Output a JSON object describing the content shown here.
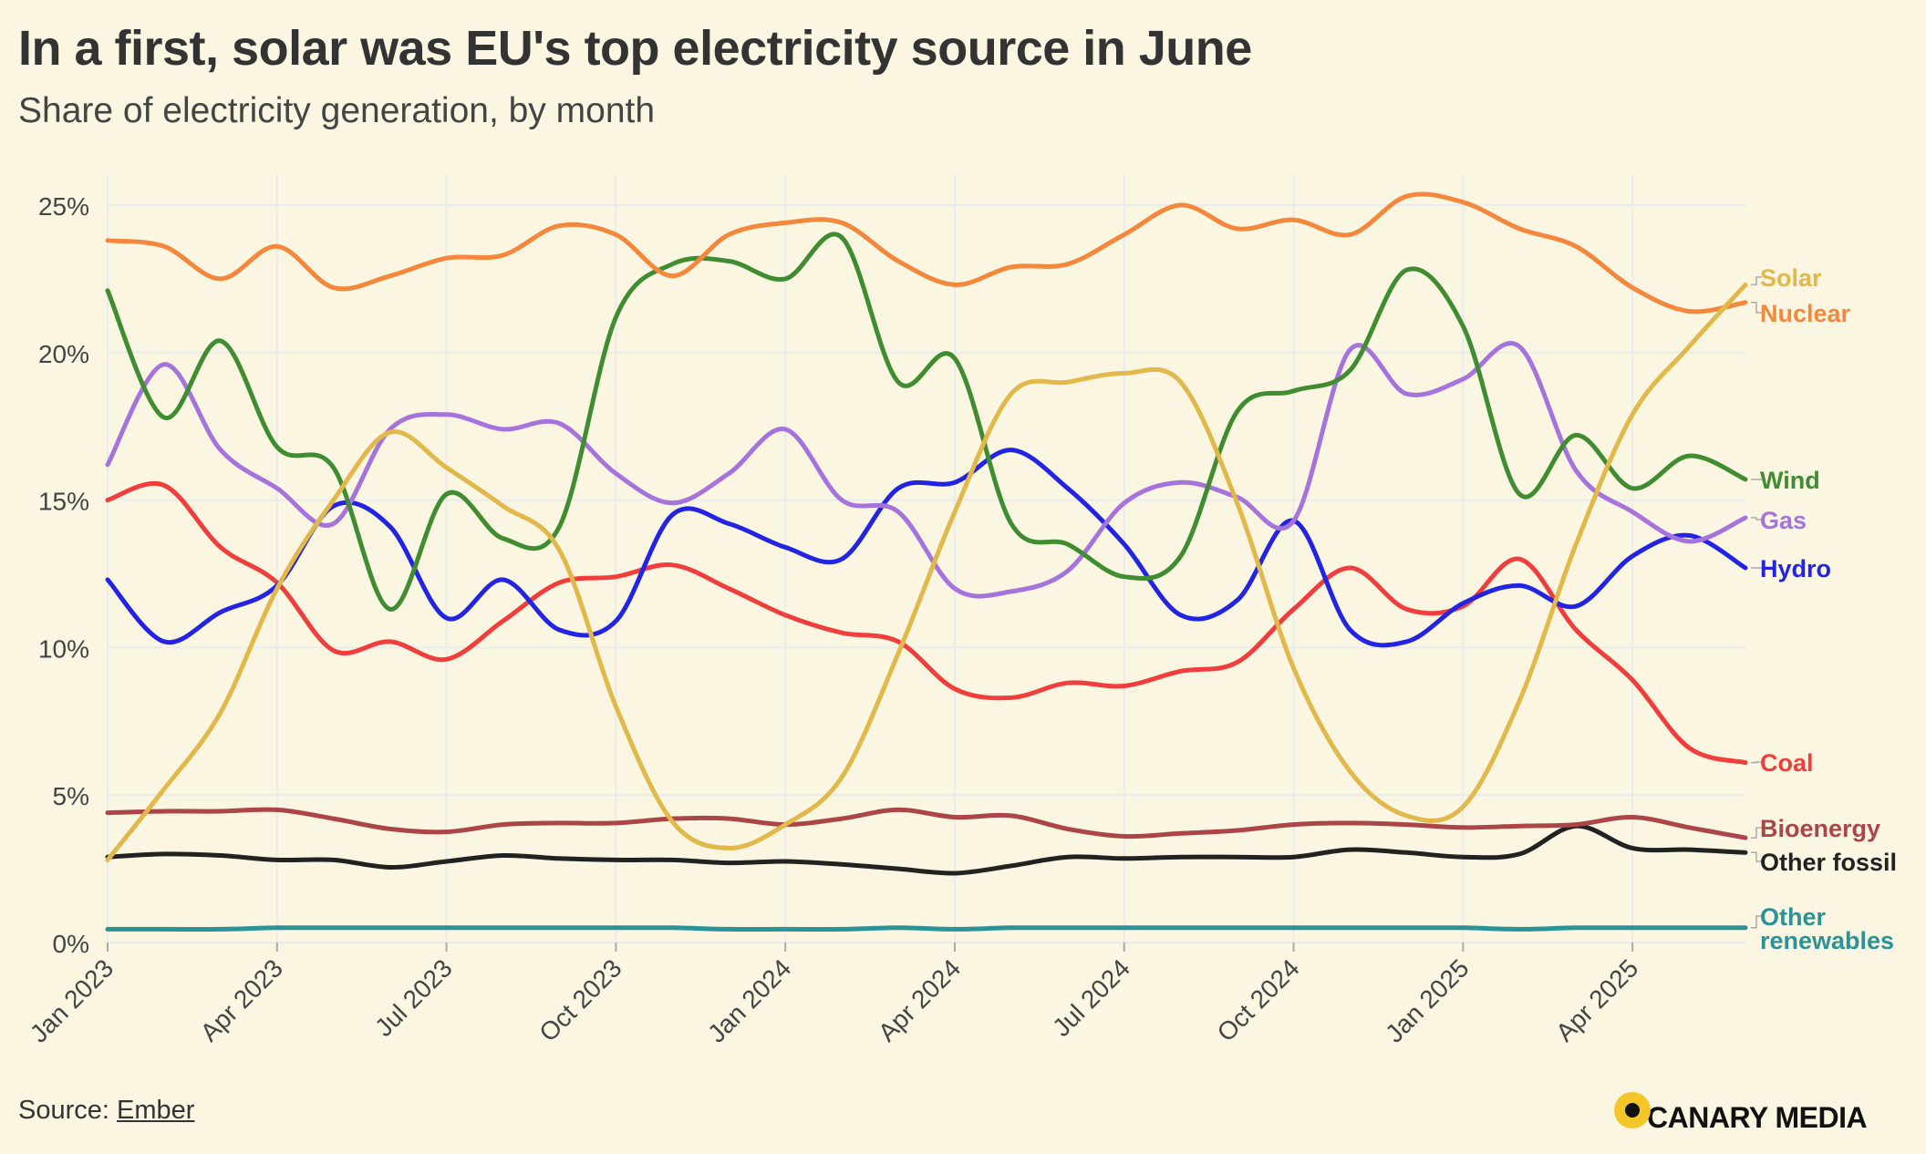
{
  "header": {
    "title": "In a first, solar was EU's top electricity source in June",
    "subtitle": "Share of electricity generation, by month"
  },
  "footer": {
    "source_label": "Source: ",
    "source_link": "Ember",
    "brand": "CANARY MEDIA"
  },
  "chart_data": {
    "type": "line",
    "title": "In a first, solar was EU's top electricity source in June",
    "subtitle": "Share of electricity generation, by month",
    "xlabel": "",
    "ylabel": "",
    "ylim": [
      0,
      26
    ],
    "yticks": [
      0,
      5,
      10,
      15,
      20,
      25
    ],
    "ytick_labels": [
      "0%",
      "5%",
      "10%",
      "15%",
      "20%",
      "25%"
    ],
    "x": [
      "2023-01",
      "2023-02",
      "2023-03",
      "2023-04",
      "2023-05",
      "2023-06",
      "2023-07",
      "2023-08",
      "2023-09",
      "2023-10",
      "2023-11",
      "2023-12",
      "2024-01",
      "2024-02",
      "2024-03",
      "2024-04",
      "2024-05",
      "2024-06",
      "2024-07",
      "2024-08",
      "2024-09",
      "2024-10",
      "2024-11",
      "2024-12",
      "2025-01",
      "2025-02",
      "2025-03",
      "2025-04",
      "2025-05",
      "2025-06"
    ],
    "xticks": [
      0,
      3,
      6,
      9,
      12,
      15,
      18,
      21,
      24,
      27
    ],
    "xtick_labels": [
      "Jan 2023",
      "Apr 2023",
      "Jul 2023",
      "Oct 2023",
      "Jan 2024",
      "Apr 2024",
      "Jul 2024",
      "Oct 2024",
      "Jan 2025",
      "Apr 2025"
    ],
    "grid": true,
    "series": [
      {
        "name": "Solar",
        "label": "Solar",
        "color": "#e2b84b",
        "values": [
          2.8,
          5.2,
          7.8,
          12.0,
          15.0,
          17.3,
          16.1,
          14.8,
          13.3,
          8.0,
          4.1,
          3.2,
          4.0,
          5.6,
          9.8,
          14.6,
          18.6,
          19.0,
          19.3,
          19.0,
          14.9,
          9.3,
          5.8,
          4.3,
          4.6,
          8.2,
          13.5,
          17.9,
          20.2,
          22.3
        ]
      },
      {
        "name": "Nuclear",
        "label": "Nuclear",
        "color": "#f5873d",
        "values": [
          23.8,
          23.6,
          22.5,
          23.6,
          22.2,
          22.6,
          23.2,
          23.3,
          24.3,
          24.0,
          22.6,
          24.0,
          24.4,
          24.4,
          23.1,
          22.3,
          22.9,
          23.0,
          24.0,
          25.0,
          24.2,
          24.5,
          24.0,
          25.3,
          25.1,
          24.2,
          23.6,
          22.2,
          21.4,
          21.7
        ]
      },
      {
        "name": "Wind",
        "label": "Wind",
        "color": "#3f8c31",
        "values": [
          22.1,
          17.8,
          20.4,
          16.8,
          16.1,
          11.3,
          15.2,
          13.7,
          14.1,
          21.2,
          23.0,
          23.1,
          22.5,
          23.9,
          19.0,
          19.8,
          14.2,
          13.5,
          12.4,
          13.1,
          18.0,
          18.7,
          19.4,
          22.8,
          20.9,
          15.2,
          17.2,
          15.4,
          16.5,
          15.7
        ]
      },
      {
        "name": "Gas",
        "label": "Gas",
        "color": "#a673dd",
        "values": [
          16.2,
          19.6,
          16.7,
          15.4,
          14.2,
          17.4,
          17.9,
          17.4,
          17.6,
          15.9,
          14.9,
          15.9,
          17.4,
          15.0,
          14.6,
          12.0,
          11.9,
          12.6,
          14.9,
          15.6,
          15.1,
          14.3,
          20.1,
          18.6,
          19.1,
          20.2,
          16.0,
          14.6,
          13.6,
          14.4
        ]
      },
      {
        "name": "Hydro",
        "label": "Hydro",
        "color": "#2324e3",
        "values": [
          12.3,
          10.2,
          11.2,
          12.1,
          14.8,
          14.1,
          11.0,
          12.3,
          10.6,
          10.9,
          14.5,
          14.2,
          13.4,
          13.0,
          15.4,
          15.6,
          16.7,
          15.4,
          13.5,
          11.1,
          11.6,
          14.3,
          10.6,
          10.2,
          11.5,
          12.1,
          11.4,
          13.1,
          13.8,
          12.7
        ]
      },
      {
        "name": "Coal",
        "label": "Coal",
        "color": "#f23d3d",
        "values": [
          15.0,
          15.5,
          13.4,
          12.2,
          9.9,
          10.2,
          9.6,
          10.9,
          12.2,
          12.4,
          12.8,
          12.0,
          11.1,
          10.5,
          10.2,
          8.6,
          8.3,
          8.8,
          8.7,
          9.2,
          9.5,
          11.3,
          12.7,
          11.3,
          11.4,
          13.0,
          10.6,
          8.9,
          6.6,
          6.1
        ]
      },
      {
        "name": "Bioenergy",
        "label": "Bioenergy",
        "color": "#ac4548",
        "values": [
          4.4,
          4.45,
          4.45,
          4.5,
          4.2,
          3.85,
          3.75,
          4.0,
          4.05,
          4.05,
          4.2,
          4.2,
          4.0,
          4.2,
          4.5,
          4.25,
          4.3,
          3.85,
          3.6,
          3.7,
          3.8,
          4.0,
          4.05,
          4.0,
          3.9,
          3.95,
          4.0,
          4.25,
          3.9,
          3.55
        ]
      },
      {
        "name": "Other fossil",
        "label": "Other fossil",
        "color": "#222222",
        "values": [
          2.9,
          3.0,
          2.95,
          2.8,
          2.8,
          2.55,
          2.75,
          2.95,
          2.85,
          2.8,
          2.8,
          2.7,
          2.75,
          2.65,
          2.5,
          2.35,
          2.6,
          2.9,
          2.85,
          2.9,
          2.9,
          2.9,
          3.15,
          3.05,
          2.9,
          3.0,
          3.95,
          3.2,
          3.15,
          3.05
        ]
      },
      {
        "name": "Other renewables",
        "label": "Other renewables",
        "color": "#2b9297",
        "values": [
          0.45,
          0.45,
          0.45,
          0.5,
          0.5,
          0.5,
          0.5,
          0.5,
          0.5,
          0.5,
          0.5,
          0.45,
          0.45,
          0.45,
          0.5,
          0.45,
          0.5,
          0.5,
          0.5,
          0.5,
          0.5,
          0.5,
          0.5,
          0.5,
          0.5,
          0.45,
          0.5,
          0.5,
          0.5,
          0.5
        ]
      }
    ]
  }
}
